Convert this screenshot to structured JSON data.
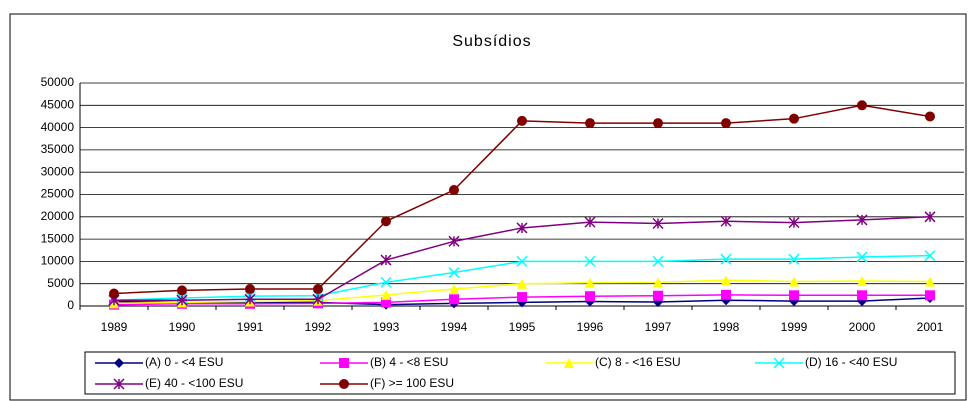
{
  "chart_data": {
    "type": "line",
    "title": "Subsídios",
    "categories": [
      "1989",
      "1990",
      "1991",
      "1992",
      "1993",
      "1994",
      "1995",
      "1996",
      "1997",
      "1998",
      "1999",
      "2000",
      "2001"
    ],
    "ylim": [
      0,
      50000
    ],
    "yticks": [
      0,
      5000,
      10000,
      15000,
      20000,
      25000,
      30000,
      35000,
      40000,
      45000,
      50000
    ],
    "grid": true,
    "legend": "bottom",
    "series": [
      {
        "name": "(A) 0 - <4 ESU",
        "color": "#000080",
        "marker": "diamond",
        "values": [
          1000,
          800,
          800,
          800,
          300,
          600,
          800,
          1000,
          900,
          1300,
          1100,
          1100,
          1800
        ]
      },
      {
        "name": "(B) 4 - <8  ESU",
        "color": "#ff00ff",
        "marker": "square",
        "values": [
          300,
          500,
          500,
          600,
          800,
          1500,
          2000,
          2200,
          2300,
          2500,
          2400,
          2400,
          2400
        ]
      },
      {
        "name": "(C) 8 - <16 ESU",
        "color": "#ffff00",
        "marker": "triangle",
        "values": [
          600,
          800,
          1000,
          1200,
          2500,
          3800,
          5000,
          5200,
          5300,
          5800,
          5500,
          5600,
          5500
        ]
      },
      {
        "name": "(D) 16 - <40 ESU",
        "color": "#00ffff",
        "marker": "x",
        "values": [
          1300,
          1800,
          2200,
          2300,
          5300,
          7500,
          10000,
          10000,
          10000,
          10500,
          10500,
          11000,
          11300
        ]
      },
      {
        "name": "(E) 40 - <100 ESU",
        "color": "#800080",
        "marker": "star",
        "values": [
          1300,
          1300,
          1500,
          1500,
          10300,
          14500,
          17500,
          18800,
          18500,
          19000,
          18700,
          19300,
          20000
        ]
      },
      {
        "name": "(F) >= 100 ESU",
        "color": "#800000",
        "marker": "circle",
        "values": [
          2800,
          3500,
          3800,
          3800,
          19000,
          26000,
          41500,
          41000,
          41000,
          41000,
          42000,
          45000,
          42500
        ]
      }
    ]
  }
}
